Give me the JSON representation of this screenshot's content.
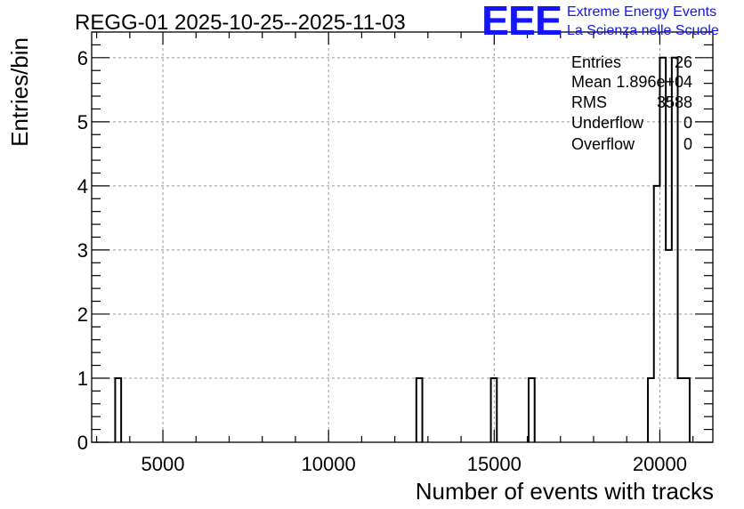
{
  "chart_data": {
    "type": "bar",
    "title": "REGG-01 2025-10-25--2025-11-03",
    "xlabel": "Number of events with tracks",
    "ylabel": "Entries/bin",
    "xlim": [
      2850,
      21600
    ],
    "ylim": [
      0,
      6.4
    ],
    "bin_width": 180,
    "xticks": [
      "5000",
      "10000",
      "15000",
      "20000"
    ],
    "yticks": [
      "0",
      "1",
      "2",
      "3",
      "4",
      "5",
      "6"
    ],
    "grid": true,
    "bins": [
      {
        "x0": 3560,
        "count": 1
      },
      {
        "x0": 12650,
        "count": 1
      },
      {
        "x0": 14900,
        "count": 1
      },
      {
        "x0": 16040,
        "count": 1
      },
      {
        "x0": 19640,
        "count": 1
      },
      {
        "x0": 19820,
        "count": 4
      },
      {
        "x0": 20000,
        "count": 6
      },
      {
        "x0": 20180,
        "count": 3
      },
      {
        "x0": 20360,
        "count": 6
      },
      {
        "x0": 20540,
        "count": 1
      },
      {
        "x0": 20720,
        "count": 1
      }
    ],
    "stats": {
      "entries_label": "Entries",
      "entries": "26",
      "mean_label": "Mean",
      "mean": "1.896e+04",
      "rms_label": "RMS",
      "rms": "3588",
      "underflow_label": "Underflow",
      "underflow": "0",
      "overflow_label": "Overflow",
      "overflow": "0"
    }
  },
  "logo": {
    "mark": "EEE",
    "line1": "Extreme Energy Events",
    "line2": "La Scienza nelle Scuole"
  }
}
